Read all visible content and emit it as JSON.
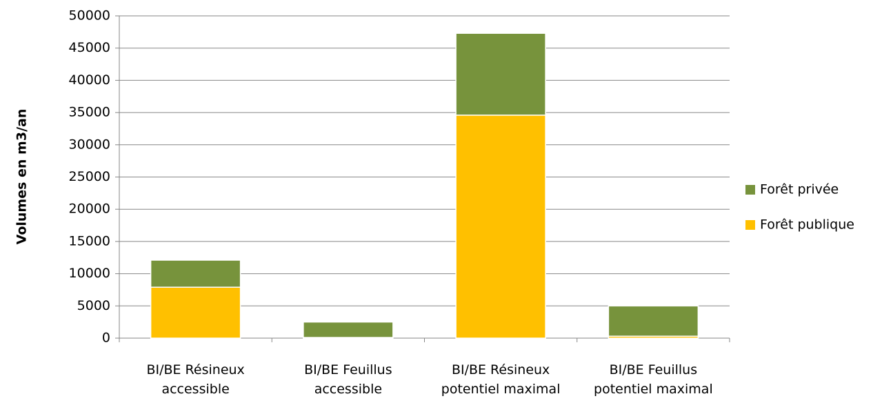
{
  "chart_data": {
    "type": "stacked_bar",
    "categories": [
      "BI/BE Résineux accessible",
      "BI/BE Feuillus accessible",
      "BI/BE Résineux potentiel maximal",
      "BI/BE Feuillus potentiel maximal"
    ],
    "series": [
      {
        "name": "Forêt publique",
        "color": "#ffc000",
        "values": [
          7900,
          100,
          34600,
          300
        ]
      },
      {
        "name": "Forêt privée",
        "color": "#77933c",
        "values": [
          4200,
          2400,
          12700,
          4700
        ]
      }
    ],
    "ylabel": "Volumes en m3/an",
    "ylim": [
      0,
      50000
    ],
    "yticks": [
      0,
      5000,
      10000,
      15000,
      20000,
      25000,
      30000,
      35000,
      40000,
      45000,
      50000
    ],
    "grid": true,
    "legend": "right"
  }
}
